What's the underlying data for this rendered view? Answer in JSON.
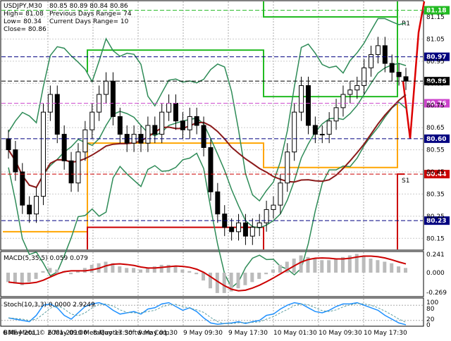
{
  "chart_data": [
    {
      "type": "candlestick",
      "title": "USDJPY,M30",
      "ohlc_header": "80.85 80.89 80.84 80.86",
      "info_lines": [
        "High= 81.08",
        "Previous Days Range= 74",
        "Low= 80.34",
        "Current Days Range= 10",
        "Close= 80.86"
      ],
      "ylim": [
        80.1,
        81.22
      ],
      "y_ticks": [
        81.15,
        81.05,
        80.95,
        80.85,
        80.75,
        80.65,
        80.55,
        80.45,
        80.35,
        80.25,
        80.15
      ],
      "highlighted_levels": [
        {
          "value": "81.18",
          "color": "#22bb22"
        },
        {
          "value": "80.97",
          "color": "#000080"
        },
        {
          "value": "80.86",
          "color": "#000000"
        },
        {
          "value": "80.76",
          "color": "#cc44cc"
        },
        {
          "value": "80.60",
          "color": "#000080"
        },
        {
          "value": "80.44",
          "color": "#cc0000"
        },
        {
          "value": "80.23",
          "color": "#000080"
        }
      ],
      "zone_labels": [
        {
          "text": "R1",
          "color": "#ccaa00"
        },
        {
          "text": "S1",
          "color": "#cc3333"
        }
      ],
      "x_tick_labels": [
        "6 May 2011",
        "6 May 09:00",
        "8 May 17:30",
        "9 May 01:30",
        "9 May 09:30",
        "9 May 17:30",
        "10 May 01:30",
        "10 May 09:30",
        "10 May 17:30"
      ],
      "grid": true,
      "close_series": [
        80.55,
        80.45,
        80.3,
        80.26,
        80.34,
        80.72,
        80.8,
        80.62,
        80.5,
        80.4,
        80.54,
        80.64,
        80.72,
        80.8,
        80.86,
        80.7,
        80.62,
        80.58,
        80.62,
        80.58,
        80.66,
        80.62,
        80.72,
        80.76,
        80.68,
        80.64,
        80.7,
        80.66,
        80.56,
        80.36,
        80.26,
        80.2,
        80.18,
        80.22,
        80.16,
        80.2,
        80.22,
        80.28,
        80.3,
        80.4,
        80.54,
        80.72,
        80.84,
        80.66,
        80.62,
        80.62,
        80.68,
        80.74,
        80.8,
        80.82,
        80.84,
        80.92,
        80.98,
        81.02,
        80.94,
        80.9,
        80.88,
        80.86
      ]
    },
    {
      "type": "histogram",
      "title": "MACD(5,35,5) 0.059 0.079",
      "y_ticks": [
        "0.241",
        "0.000",
        "-0.269"
      ],
      "hist_values": [
        -0.12,
        -0.14,
        -0.16,
        -0.12,
        -0.08,
        0.02,
        0.06,
        0.04,
        0.02,
        -0.02,
        0.02,
        0.06,
        0.1,
        0.12,
        0.14,
        0.12,
        0.08,
        0.06,
        0.06,
        0.04,
        0.06,
        0.08,
        0.1,
        0.1,
        0.08,
        0.04,
        0.02,
        -0.02,
        -0.1,
        -0.2,
        -0.26,
        -0.26,
        -0.24,
        -0.2,
        -0.16,
        -0.12,
        -0.08,
        -0.02,
        0.04,
        0.1,
        0.14,
        0.18,
        0.22,
        0.2,
        0.18,
        0.16,
        0.16,
        0.18,
        0.2,
        0.22,
        0.24,
        0.22,
        0.18,
        0.16,
        0.14,
        0.12,
        0.08,
        0.06
      ]
    },
    {
      "type": "line",
      "title": "Stoch(10,3,3) 0.0000 2.9249",
      "y_ticks": [
        "100",
        "80",
        "20",
        "0"
      ],
      "values": [
        30,
        25,
        20,
        15,
        40,
        80,
        85,
        70,
        40,
        25,
        50,
        75,
        85,
        90,
        80,
        60,
        45,
        50,
        55,
        45,
        65,
        70,
        85,
        90,
        75,
        60,
        70,
        55,
        30,
        10,
        5,
        8,
        10,
        15,
        8,
        15,
        20,
        40,
        45,
        65,
        80,
        90,
        85,
        70,
        55,
        50,
        60,
        75,
        85,
        85,
        90,
        80,
        70,
        60,
        40,
        25,
        10,
        3
      ]
    }
  ]
}
